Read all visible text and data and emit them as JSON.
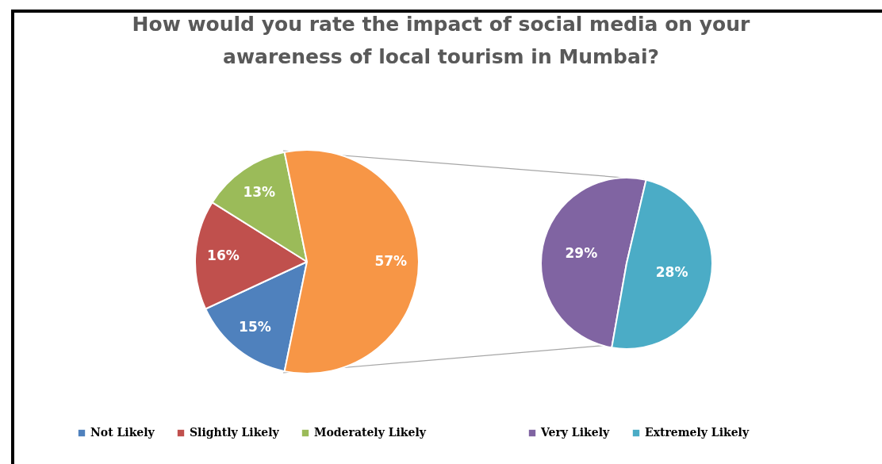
{
  "chart_data": [
    {
      "type": "pie",
      "title": "How would you rate the impact of social media on your awareness of local tourism in Mumbai?",
      "categories": [
        "Not Likely",
        "Slightly Likely",
        "Moderately Likely",
        null
      ],
      "values": [
        15,
        16,
        13,
        57
      ],
      "colors": [
        "#4f81bd",
        "#c0504d",
        "#9bbb59",
        "#f79646"
      ],
      "value_labels": [
        "15%",
        "16%",
        "13%",
        "57%"
      ],
      "legend": "bottom"
    },
    {
      "type": "pie",
      "categories": [
        "Very Likely",
        "Extremely Likely"
      ],
      "values": [
        29,
        28
      ],
      "colors": [
        "#8064a2",
        "#4bacc6"
      ],
      "value_labels": [
        "29%",
        "28%"
      ],
      "legend": "bottom"
    }
  ]
}
